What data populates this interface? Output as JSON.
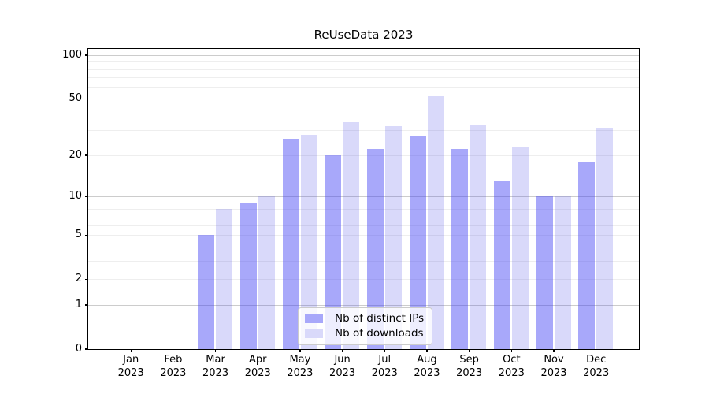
{
  "chart_data": {
    "type": "bar",
    "title": "ReUseData 2023",
    "categories": [
      "Jan 2023",
      "Feb 2023",
      "Mar 2023",
      "Apr 2023",
      "May 2023",
      "Jun 2023",
      "Jul 2023",
      "Aug 2023",
      "Sep 2023",
      "Oct 2023",
      "Nov 2023",
      "Dec 2023"
    ],
    "series": [
      {
        "name": "Nb of distinct IPs",
        "color": "#a8a8fa",
        "fill": "rgba(62,62,244,0.45)",
        "values": [
          0,
          0,
          5,
          9,
          26,
          20,
          22,
          27,
          22,
          13,
          10,
          18
        ]
      },
      {
        "name": "Nb of downloads",
        "color": "#d9d9fa",
        "fill": "rgba(65,65,230,0.20)",
        "values": [
          0,
          0,
          8,
          10,
          28,
          34,
          32,
          52,
          33,
          23,
          10,
          31
        ]
      }
    ],
    "xlabel": "",
    "ylabel": "",
    "yscale": "log1p",
    "ylim": [
      0,
      110
    ],
    "ytick_values": [
      0,
      1,
      2,
      5,
      10,
      20,
      50,
      100
    ],
    "ytick_labels": [
      "0",
      "1",
      "2",
      "5",
      "10",
      "20",
      "50",
      "100"
    ],
    "major_gridlines": [
      1,
      10,
      100
    ],
    "minor_gridlines": [
      2,
      3,
      4,
      5,
      6,
      7,
      8,
      9,
      20,
      30,
      40,
      50,
      60,
      70,
      80,
      90
    ],
    "minor_tick_values": [
      3,
      4,
      6,
      7,
      8,
      9,
      30,
      40,
      60,
      70,
      80,
      90
    ],
    "grid": "horizontal, on",
    "legend_position": "lower center, inside axes"
  },
  "colors": {
    "distinct_ips_bar": "#a8a8fa",
    "downloads_bar": "#d9d9fa",
    "major_grid": "#cccccc",
    "minor_grid": "#eeeeee",
    "axis": "#000000",
    "legend_border": "#cccccc"
  }
}
